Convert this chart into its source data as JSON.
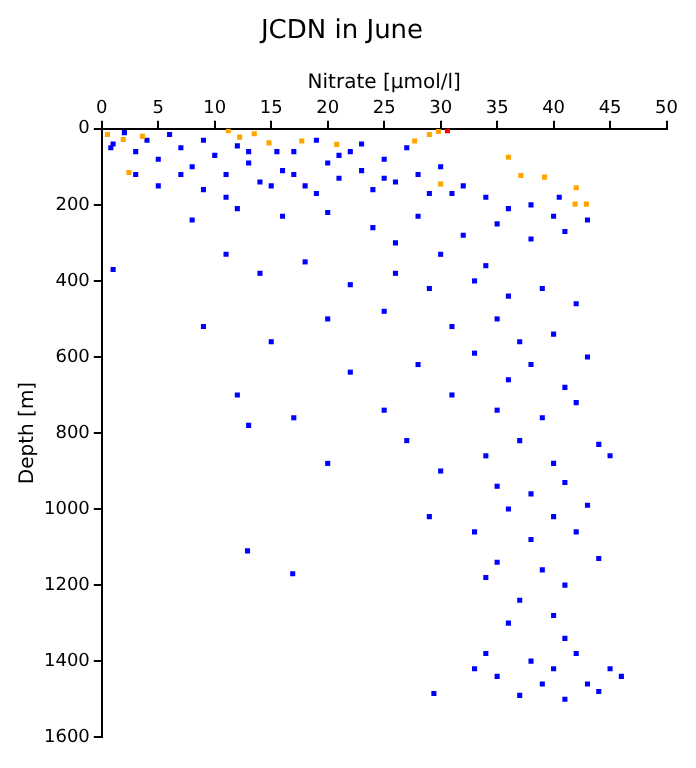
{
  "chart_data": {
    "type": "scatter",
    "title": "JCDN in June",
    "xlabel": "Nitrate [µmol/l]",
    "ylabel": "Depth [m]",
    "xlim": [
      0,
      50
    ],
    "xticks": [
      0,
      5,
      10,
      15,
      20,
      25,
      30,
      35,
      40,
      45,
      50
    ],
    "ylim": [
      1600,
      0
    ],
    "yticks": [
      0,
      200,
      400,
      600,
      800,
      1000,
      1200,
      1400,
      1600
    ],
    "grid": false,
    "legend": false,
    "marker": "square",
    "series": [
      {
        "color": "#0000ff",
        "x": [
          0.8,
          1,
          2,
          3,
          4,
          5,
          6,
          7,
          8,
          9,
          10,
          11,
          12,
          13,
          14,
          15.5,
          16,
          17,
          18,
          19,
          20,
          21,
          22,
          23,
          24,
          25,
          26,
          27,
          28,
          29,
          30,
          31,
          32,
          34,
          36,
          38,
          40,
          40.5,
          43,
          3,
          5,
          7,
          9,
          11,
          13,
          15,
          17,
          19,
          21,
          23,
          25,
          20,
          24,
          28,
          32,
          35,
          38,
          41,
          26,
          16,
          12,
          8,
          30,
          1,
          11,
          14,
          18,
          22,
          26,
          29,
          33,
          36,
          39,
          42,
          34,
          9,
          15,
          20,
          25,
          31,
          35,
          37,
          40,
          43,
          38,
          33,
          41,
          36,
          28,
          22,
          12,
          17,
          25,
          31,
          35,
          39,
          42,
          37,
          40,
          34,
          44,
          20,
          27,
          13,
          45,
          30,
          35,
          38,
          41,
          36,
          40,
          43,
          33,
          38,
          42,
          29,
          12.9,
          16.9,
          35,
          39,
          41,
          44,
          37,
          40,
          34,
          36,
          41,
          34,
          38,
          42,
          45,
          35,
          39,
          43,
          46,
          37,
          41,
          44,
          29.4,
          40,
          33
        ],
        "values": [
          50,
          40,
          10,
          60,
          30,
          80,
          15,
          50,
          100,
          30,
          70,
          120,
          45,
          90,
          140,
          60,
          110,
          60,
          150,
          30,
          90,
          130,
          60,
          110,
          160,
          80,
          140,
          50,
          120,
          170,
          100,
          170,
          150,
          180,
          210,
          200,
          230,
          180,
          240,
          120,
          150,
          120,
          160,
          180,
          60,
          150,
          120,
          170,
          70,
          40,
          130,
          220,
          260,
          230,
          280,
          250,
          290,
          270,
          300,
          230,
          210,
          240,
          330,
          370,
          330,
          380,
          350,
          410,
          380,
          420,
          400,
          440,
          420,
          460,
          360,
          520,
          560,
          500,
          480,
          520,
          500,
          560,
          540,
          600,
          620,
          590,
          680,
          660,
          620,
          640,
          700,
          760,
          740,
          700,
          740,
          760,
          720,
          820,
          880,
          860,
          830,
          880,
          820,
          780,
          860,
          900,
          940,
          960,
          930,
          1000,
          1020,
          990,
          1060,
          1080,
          1060,
          1020,
          1110,
          1170,
          1140,
          1160,
          1200,
          1130,
          1240,
          1280,
          1180,
          1300,
          1340,
          1380,
          1400,
          1380,
          1420,
          1440,
          1460,
          1460,
          1440,
          1490,
          1500,
          1480,
          1485,
          1420,
          1420
        ]
      },
      {
        "color": "#ffa500",
        "x": [
          0.5,
          1.9,
          3.6,
          2.4,
          11.2,
          12.2,
          13.5,
          14.8,
          17.7,
          20.8,
          27.7,
          29,
          29.8,
          30,
          36,
          37.1,
          39.2,
          42,
          41.9,
          42.9
        ],
        "values": [
          15,
          28,
          20,
          115,
          5,
          22,
          13,
          37,
          32,
          41,
          32,
          15,
          7,
          145,
          75,
          123,
          127,
          155,
          198,
          198
        ]
      },
      {
        "color": "#ff0000",
        "x": [
          30.6
        ],
        "values": [
          5
        ]
      }
    ]
  }
}
